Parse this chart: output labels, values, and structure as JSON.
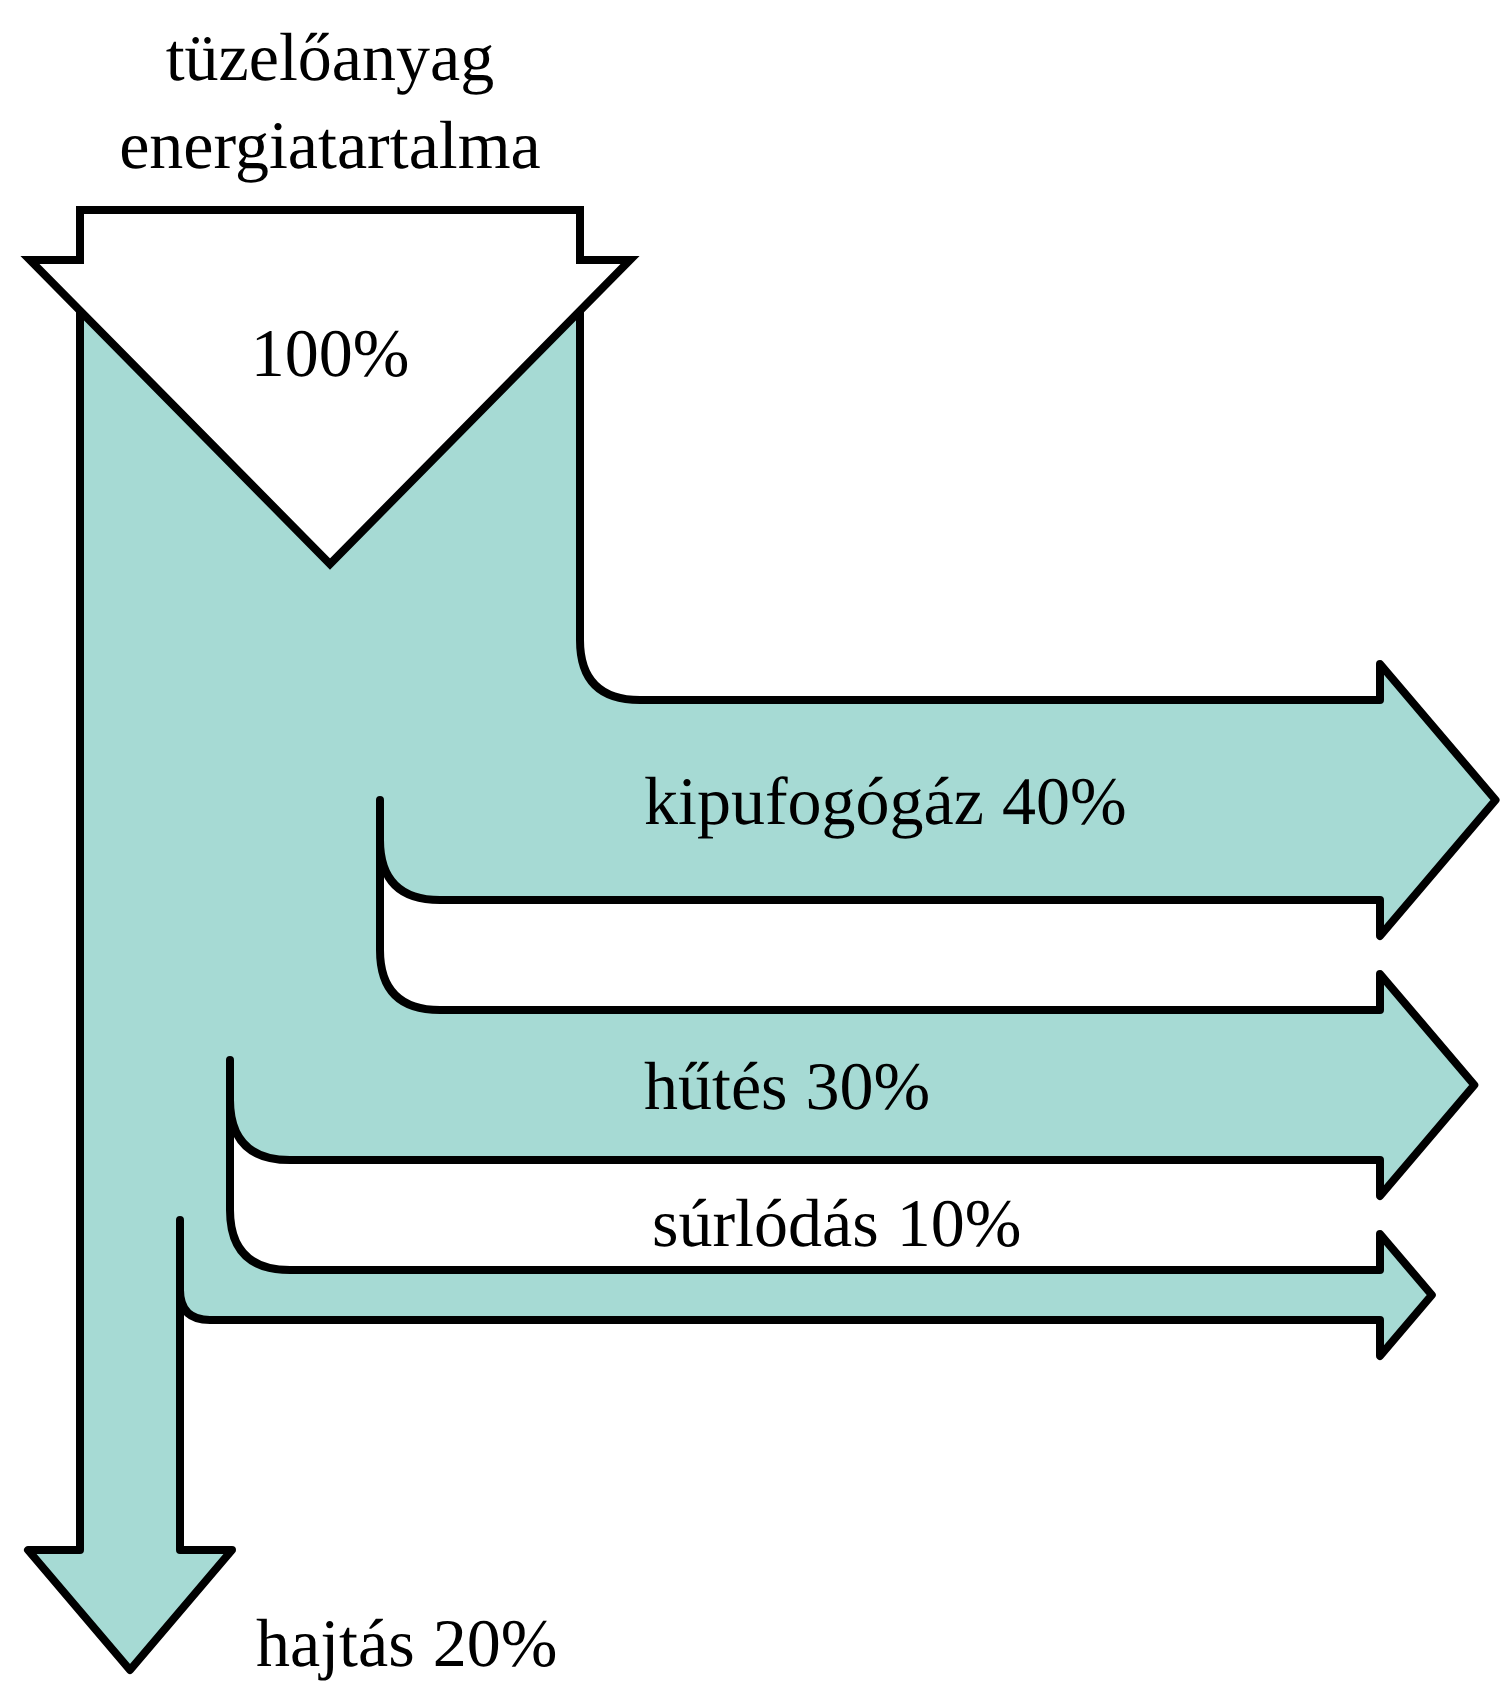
{
  "chart_data": {
    "type": "other",
    "title": "tüzelőanyag energiatartalma",
    "categories": [
      "kipufogógáz",
      "hűtés",
      "súrlódás",
      "hajtás"
    ],
    "values": [
      40,
      30,
      10,
      20
    ],
    "value_labels": [
      "40%",
      "30%",
      "10%",
      "20%"
    ],
    "colors": [
      "#a6dad4",
      "#a6dad4",
      "#a6dad4",
      "#a6dad4"
    ],
    "annotations": [
      "100%"
    ]
  }
}
